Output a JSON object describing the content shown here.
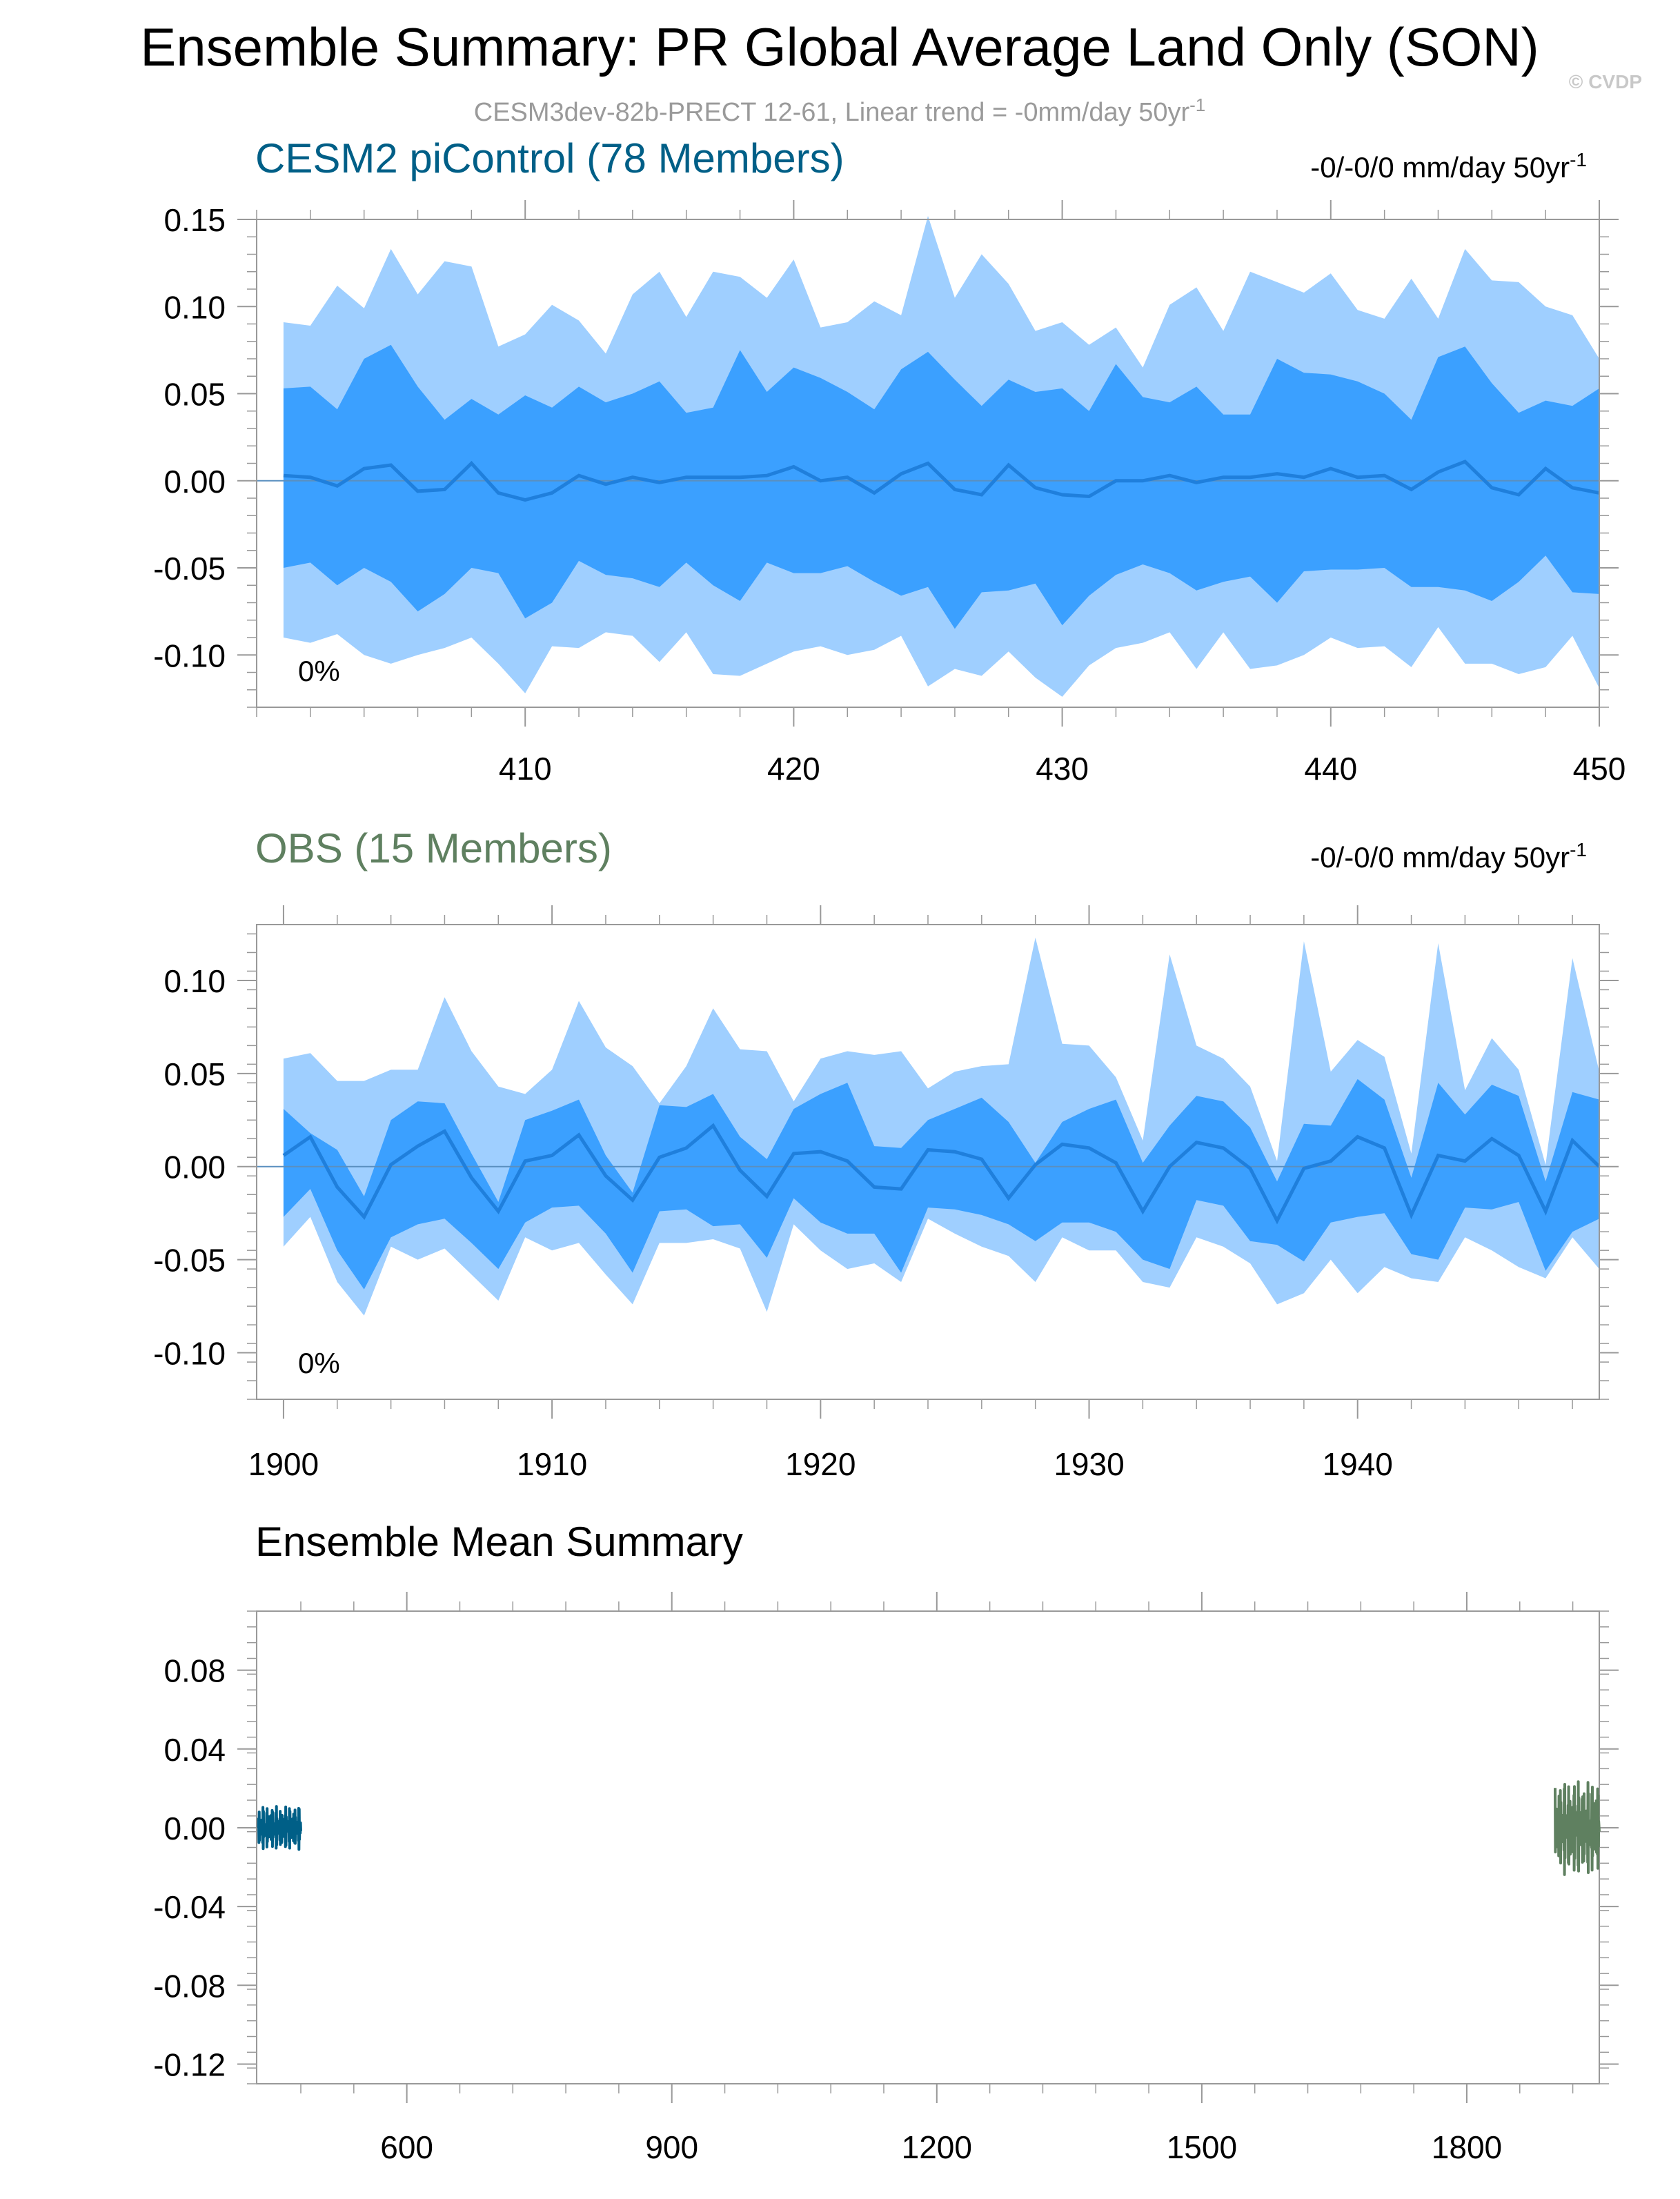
{
  "header": {
    "title": "Ensemble Summary: PR Global Average Land Only (SON)",
    "subtitle": "CESM3dev-82b-PRECT 12-61, Linear trend = -0mm/day 50yr",
    "subtitle_sup": "-1",
    "watermark": "© CVDP"
  },
  "colors": {
    "outer_band": "#9fcfff",
    "inner_band": "#3ba0ff",
    "mean_line": "#1f7fdc",
    "model_title": "#005f87",
    "obs_title": "#5f8060",
    "axis": "#000000",
    "subtitle": "#9a9a9a"
  },
  "chart_data": [
    {
      "type": "area",
      "title": "CESM2 piControl (78 Members)",
      "trend": "-0/-0/0 mm/day 50yr",
      "trend_sup": "-1",
      "annotation": "0%",
      "xlim": [
        400,
        450
      ],
      "ylim": [
        -0.13,
        0.15
      ],
      "xticks": [
        410,
        420,
        430,
        440,
        450
      ],
      "xtick_labels": [
        "410",
        "420",
        "430",
        "440",
        "450"
      ],
      "yticks": [
        -0.1,
        -0.05,
        0.0,
        0.05,
        0.1,
        0.15
      ],
      "ytick_labels": [
        "-0.10",
        "-0.05",
        "0.00",
        "0.05",
        "0.10",
        "0.15"
      ],
      "x": [
        401,
        402,
        403,
        404,
        405,
        406,
        407,
        408,
        409,
        410,
        411,
        412,
        413,
        414,
        415,
        416,
        417,
        418,
        419,
        420,
        421,
        422,
        423,
        424,
        425,
        426,
        427,
        428,
        429,
        430,
        431,
        432,
        433,
        434,
        435,
        436,
        437,
        438,
        439,
        440,
        441,
        442,
        443,
        444,
        445,
        446,
        447,
        448,
        449,
        450
      ],
      "max": [
        0.091,
        0.089,
        0.112,
        0.099,
        0.133,
        0.107,
        0.126,
        0.123,
        0.077,
        0.084,
        0.101,
        0.092,
        0.073,
        0.107,
        0.12,
        0.094,
        0.12,
        0.117,
        0.105,
        0.127,
        0.088,
        0.091,
        0.103,
        0.095,
        0.152,
        0.105,
        0.13,
        0.113,
        0.086,
        0.091,
        0.078,
        0.088,
        0.065,
        0.101,
        0.111,
        0.086,
        0.12,
        0.114,
        0.108,
        0.119,
        0.098,
        0.093,
        0.116,
        0.093,
        0.133,
        0.115,
        0.114,
        0.1,
        0.095,
        0.07
      ],
      "p90": [
        0.053,
        0.054,
        0.041,
        0.07,
        0.078,
        0.054,
        0.035,
        0.047,
        0.038,
        0.049,
        0.042,
        0.054,
        0.045,
        0.05,
        0.057,
        0.039,
        0.042,
        0.075,
        0.051,
        0.065,
        0.059,
        0.051,
        0.041,
        0.064,
        0.074,
        0.058,
        0.043,
        0.058,
        0.051,
        0.053,
        0.04,
        0.067,
        0.048,
        0.045,
        0.054,
        0.038,
        0.038,
        0.07,
        0.062,
        0.061,
        0.057,
        0.05,
        0.035,
        0.071,
        0.077,
        0.056,
        0.039,
        0.046,
        0.043,
        0.053
      ],
      "mean": [
        0.003,
        0.002,
        -0.003,
        0.007,
        0.009,
        -0.006,
        -0.005,
        0.01,
        -0.007,
        -0.011,
        -0.007,
        0.003,
        -0.002,
        0.002,
        -0.001,
        0.002,
        0.002,
        0.002,
        0.003,
        0.008,
        0.0,
        0.002,
        -0.007,
        0.004,
        0.01,
        -0.005,
        -0.008,
        0.009,
        -0.004,
        -0.008,
        -0.009,
        0.0,
        0.0,
        0.003,
        -0.001,
        0.002,
        0.002,
        0.004,
        0.002,
        0.007,
        0.002,
        0.003,
        -0.005,
        0.005,
        0.011,
        -0.004,
        -0.008,
        0.007,
        -0.004,
        -0.007
      ],
      "p10": [
        -0.05,
        -0.047,
        -0.06,
        -0.05,
        -0.058,
        -0.075,
        -0.065,
        -0.05,
        -0.053,
        -0.079,
        -0.07,
        -0.046,
        -0.054,
        -0.056,
        -0.061,
        -0.047,
        -0.06,
        -0.069,
        -0.047,
        -0.053,
        -0.053,
        -0.049,
        -0.058,
        -0.066,
        -0.061,
        -0.085,
        -0.064,
        -0.063,
        -0.059,
        -0.083,
        -0.066,
        -0.054,
        -0.048,
        -0.053,
        -0.063,
        -0.058,
        -0.055,
        -0.07,
        -0.052,
        -0.051,
        -0.051,
        -0.05,
        -0.061,
        -0.061,
        -0.063,
        -0.069,
        -0.058,
        -0.043,
        -0.064,
        -0.065
      ],
      "min": [
        -0.09,
        -0.093,
        -0.088,
        -0.1,
        -0.105,
        -0.1,
        -0.096,
        -0.09,
        -0.105,
        -0.122,
        -0.095,
        -0.096,
        -0.087,
        -0.089,
        -0.104,
        -0.087,
        -0.111,
        -0.112,
        -0.105,
        -0.098,
        -0.095,
        -0.1,
        -0.097,
        -0.089,
        -0.118,
        -0.108,
        -0.112,
        -0.098,
        -0.113,
        -0.124,
        -0.106,
        -0.096,
        -0.093,
        -0.087,
        -0.108,
        -0.087,
        -0.108,
        -0.106,
        -0.1,
        -0.09,
        -0.096,
        -0.095,
        -0.107,
        -0.084,
        -0.105,
        -0.105,
        -0.111,
        -0.107,
        -0.089,
        -0.119
      ]
    },
    {
      "type": "area",
      "title": "OBS (15 Members)",
      "trend": "-0/-0/0 mm/day 50yr",
      "trend_sup": "-1",
      "annotation": "0%",
      "xlim": [
        1899,
        1949
      ],
      "ylim": [
        -0.125,
        0.13
      ],
      "xticks": [
        1900,
        1910,
        1920,
        1930,
        1940
      ],
      "xtick_labels": [
        "1900",
        "1910",
        "1920",
        "1930",
        "1940"
      ],
      "yticks": [
        -0.1,
        -0.05,
        0.0,
        0.05,
        0.1
      ],
      "ytick_labels": [
        "-0.10",
        "-0.05",
        "0.00",
        "0.05",
        "0.10"
      ],
      "x": [
        1900,
        1901,
        1902,
        1903,
        1904,
        1905,
        1906,
        1907,
        1908,
        1909,
        1910,
        1911,
        1912,
        1913,
        1914,
        1915,
        1916,
        1917,
        1918,
        1919,
        1920,
        1921,
        1922,
        1923,
        1924,
        1925,
        1926,
        1927,
        1928,
        1929,
        1930,
        1931,
        1932,
        1933,
        1934,
        1935,
        1936,
        1937,
        1938,
        1939,
        1940,
        1941,
        1942,
        1943,
        1944,
        1945,
        1946,
        1947,
        1948,
        1949
      ],
      "max": [
        0.058,
        0.061,
        0.046,
        0.046,
        0.052,
        0.052,
        0.091,
        0.062,
        0.043,
        0.039,
        0.052,
        0.089,
        0.064,
        0.054,
        0.034,
        0.054,
        0.085,
        0.063,
        0.062,
        0.035,
        0.058,
        0.062,
        0.06,
        0.062,
        0.042,
        0.051,
        0.054,
        0.055,
        0.123,
        0.066,
        0.065,
        0.048,
        0.014,
        0.114,
        0.065,
        0.058,
        0.043,
        0.003,
        0.121,
        0.051,
        0.068,
        0.059,
        0.007,
        0.12,
        0.041,
        0.069,
        0.052,
        0.001,
        0.112,
        0.051
      ],
      "p90": [
        0.031,
        0.018,
        0.009,
        -0.016,
        0.025,
        0.035,
        0.034,
        0.007,
        -0.019,
        0.025,
        0.03,
        0.036,
        0.006,
        -0.014,
        0.033,
        0.032,
        0.039,
        0.016,
        0.004,
        0.031,
        0.039,
        0.045,
        0.011,
        0.01,
        0.025,
        0.031,
        0.037,
        0.024,
        0.002,
        0.024,
        0.031,
        0.036,
        0.002,
        0.022,
        0.038,
        0.035,
        0.021,
        -0.008,
        0.023,
        0.022,
        0.047,
        0.036,
        -0.006,
        0.045,
        0.028,
        0.044,
        0.038,
        -0.008,
        0.04,
        0.036
      ],
      "mean": [
        0.006,
        0.016,
        -0.011,
        -0.027,
        0.001,
        0.011,
        0.019,
        -0.006,
        -0.024,
        0.003,
        0.006,
        0.017,
        -0.005,
        -0.018,
        0.005,
        0.01,
        0.022,
        -0.002,
        -0.016,
        0.007,
        0.008,
        0.003,
        -0.011,
        -0.012,
        0.009,
        0.008,
        0.004,
        -0.017,
        0.001,
        0.012,
        0.01,
        0.002,
        -0.024,
        0.0,
        0.013,
        0.01,
        -0.001,
        -0.029,
        -0.001,
        0.003,
        0.016,
        0.01,
        -0.026,
        0.006,
        0.003,
        0.015,
        0.006,
        -0.024,
        0.014,
        0.0
      ],
      "min": [
        -0.043,
        -0.027,
        -0.062,
        -0.08,
        -0.043,
        -0.05,
        -0.044,
        -0.058,
        -0.072,
        -0.038,
        -0.045,
        -0.041,
        -0.058,
        -0.074,
        -0.041,
        -0.041,
        -0.039,
        -0.044,
        -0.078,
        -0.031,
        -0.045,
        -0.055,
        -0.052,
        -0.062,
        -0.028,
        -0.036,
        -0.043,
        -0.048,
        -0.062,
        -0.038,
        -0.045,
        -0.045,
        -0.062,
        -0.065,
        -0.038,
        -0.043,
        -0.052,
        -0.074,
        -0.068,
        -0.05,
        -0.068,
        -0.054,
        -0.06,
        -0.062,
        -0.038,
        -0.045,
        -0.054,
        -0.06,
        -0.038,
        -0.055
      ],
      "p10": [
        -0.027,
        -0.012,
        -0.045,
        -0.066,
        -0.038,
        -0.031,
        -0.028,
        -0.041,
        -0.055,
        -0.03,
        -0.022,
        -0.021,
        -0.036,
        -0.057,
        -0.024,
        -0.023,
        -0.032,
        -0.031,
        -0.049,
        -0.017,
        -0.03,
        -0.036,
        -0.036,
        -0.057,
        -0.022,
        -0.023,
        -0.026,
        -0.031,
        -0.04,
        -0.03,
        -0.03,
        -0.035,
        -0.05,
        -0.055,
        -0.018,
        -0.021,
        -0.04,
        -0.042,
        -0.051,
        -0.03,
        -0.027,
        -0.025,
        -0.047,
        -0.05,
        -0.022,
        -0.023,
        -0.019,
        -0.056,
        -0.035,
        -0.028
      ]
    },
    {
      "type": "line",
      "title": "Ensemble Mean Summary",
      "xlim": [
        430,
        1950
      ],
      "ylim": [
        -0.13,
        0.11
      ],
      "xticks": [
        600,
        900,
        1200,
        1500,
        1800
      ],
      "xtick_labels": [
        "600",
        "900",
        "1200",
        "1500",
        "1800"
      ],
      "yticks": [
        -0.12,
        -0.08,
        -0.04,
        0.0,
        0.04,
        0.08
      ],
      "ytick_labels": [
        "-0.12",
        "-0.08",
        "-0.04",
        "0.00",
        "0.04",
        "0.08"
      ],
      "series": [
        {
          "color": "#005f87",
          "x_range": [
            432,
            480
          ],
          "amplitude": 0.011
        },
        {
          "color": "#5f8060",
          "x_range": [
            1900,
            1950
          ],
          "amplitude": 0.024
        }
      ]
    }
  ]
}
